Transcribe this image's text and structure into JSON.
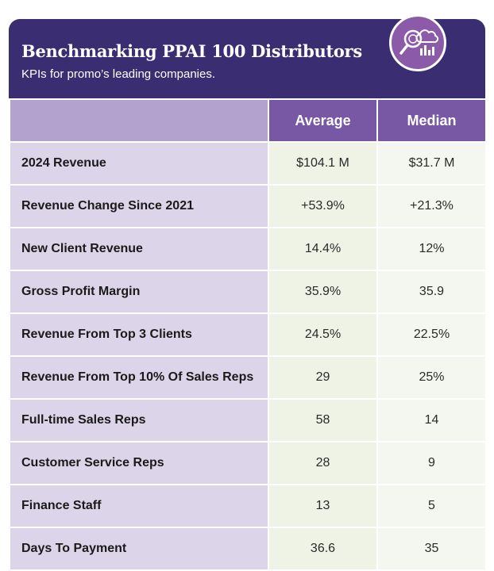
{
  "header": {
    "title": "Benchmarking PPAI 100 Distributors",
    "subtitle": "KPIs for promo’s leading companies.",
    "icon": "analytics-magnifier-icon"
  },
  "colors": {
    "header_bg": "#3a2d72",
    "column_header_bg": "#7857a4",
    "row_label_bg": "#dcd4e8",
    "value_bg": "#eef3e6",
    "badge_bg": "#8b5aa8"
  },
  "chart_data": {
    "type": "table",
    "title": "Benchmarking PPAI 100 Distributors",
    "subtitle": "KPIs for promo’s leading companies.",
    "columns": [
      "",
      "Average",
      "Median"
    ],
    "rows": [
      {
        "label": "2024 Revenue",
        "average": "$104.1 M",
        "median": "$31.7 M"
      },
      {
        "label": "Revenue Change Since 2021",
        "average": "+53.9%",
        "median": "+21.3%"
      },
      {
        "label": "New Client Revenue",
        "average": "14.4%",
        "median": "12%"
      },
      {
        "label": "Gross Profit Margin",
        "average": "35.9%",
        "median": "35.9"
      },
      {
        "label": "Revenue From Top 3 Clients",
        "average": "24.5%",
        "median": "22.5%"
      },
      {
        "label": "Revenue From Top 10% Of Sales Reps",
        "average": "29",
        "median": "25%"
      },
      {
        "label": "Full-time Sales Reps",
        "average": "58",
        "median": "14"
      },
      {
        "label": "Customer Service Reps",
        "average": "28",
        "median": "9"
      },
      {
        "label": "Finance Staff",
        "average": "13",
        "median": "5"
      },
      {
        "label": "Days To Payment",
        "average": "36.6",
        "median": "35"
      }
    ]
  }
}
